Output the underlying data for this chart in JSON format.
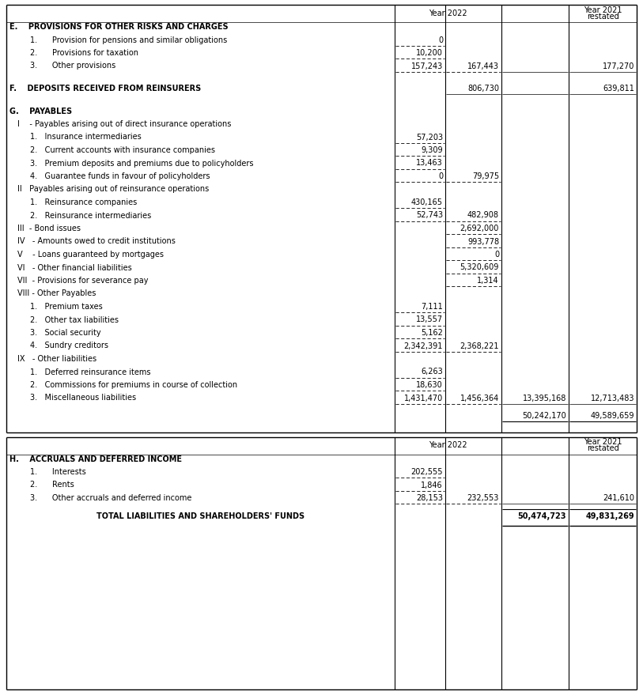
{
  "bg_color": "#ffffff",
  "header_yr2022": "Year 2022",
  "header_yr2021_line1": "Year 2021",
  "header_yr2021_line2": "restated",
  "section_E_title": "E.    PROVISIONS FOR OTHER RISKS AND CHARGES",
  "E_rows": [
    {
      "label": "1.      Provision for pensions and similar obligations",
      "c1": "0",
      "c2": "",
      "c3": "",
      "c4": ""
    },
    {
      "label": "2.      Provisions for taxation",
      "c1": "10,200",
      "c2": "",
      "c3": "",
      "c4": ""
    },
    {
      "label": "3.      Other provisions",
      "c1": "157,243",
      "c2": "167,443",
      "c3": "",
      "c4": "177,270"
    }
  ],
  "section_F_title": "F.    DEPOSITS RECEIVED FROM REINSURERS",
  "F_c2": "806,730",
  "F_c4": "639,811",
  "section_G_title": "G.    PAYABLES",
  "G_rows": [
    {
      "label": "I    - Payables arising out of direct insurance operations",
      "c1": "",
      "c2": "",
      "c3": "",
      "c4": "",
      "level": 1
    },
    {
      "label": "1.   Insurance intermediaries",
      "c1": "57,203",
      "c2": "",
      "c3": "",
      "c4": "",
      "level": 2
    },
    {
      "label": "2.   Current accounts with insurance companies",
      "c1": "9,309",
      "c2": "",
      "c3": "",
      "c4": "",
      "level": 2
    },
    {
      "label": "3.   Premium deposits and premiums due to policyholders",
      "c1": "13,463",
      "c2": "",
      "c3": "",
      "c4": "",
      "level": 2
    },
    {
      "label": "4.   Guarantee funds in favour of policyholders",
      "c1": "0",
      "c2": "79,975",
      "c3": "",
      "c4": "",
      "level": 2
    },
    {
      "label": "II   Payables arising out of reinsurance operations",
      "c1": "",
      "c2": "",
      "c3": "",
      "c4": "",
      "level": 1
    },
    {
      "label": "1.   Reinsurance companies",
      "c1": "430,165",
      "c2": "",
      "c3": "",
      "c4": "",
      "level": 2
    },
    {
      "label": "2.   Reinsurance intermediaries",
      "c1": "52,743",
      "c2": "482,908",
      "c3": "",
      "c4": "",
      "level": 2
    },
    {
      "label": "III  - Bond issues",
      "c1": "",
      "c2": "2,692,000",
      "c3": "",
      "c4": "",
      "level": 1
    },
    {
      "label": "IV   - Amounts owed to credit institutions",
      "c1": "",
      "c2": "993,778",
      "c3": "",
      "c4": "",
      "level": 1
    },
    {
      "label": "V    - Loans guaranteed by mortgages",
      "c1": "",
      "c2": "0",
      "c3": "",
      "c4": "",
      "level": 1
    },
    {
      "label": "VI   - Other financial liabilities",
      "c1": "",
      "c2": "5,320,609",
      "c3": "",
      "c4": "",
      "level": 1
    },
    {
      "label": "VII  - Provisions for severance pay",
      "c1": "",
      "c2": "1,314",
      "c3": "",
      "c4": "",
      "level": 1
    },
    {
      "label": "VIII - Other Payables",
      "c1": "",
      "c2": "",
      "c3": "",
      "c4": "",
      "level": 1
    },
    {
      "label": "1.   Premium taxes",
      "c1": "7,111",
      "c2": "",
      "c3": "",
      "c4": "",
      "level": 2
    },
    {
      "label": "2.   Other tax liabilities",
      "c1": "13,557",
      "c2": "",
      "c3": "",
      "c4": "",
      "level": 2
    },
    {
      "label": "3.   Social security",
      "c1": "5,162",
      "c2": "",
      "c3": "",
      "c4": "",
      "level": 2
    },
    {
      "label": "4.   Sundry creditors",
      "c1": "2,342,391",
      "c2": "2,368,221",
      "c3": "",
      "c4": "",
      "level": 2
    },
    {
      "label": "IX   - Other liabilities",
      "c1": "",
      "c2": "",
      "c3": "",
      "c4": "",
      "level": 1
    },
    {
      "label": "1.   Deferred reinsurance items",
      "c1": "6,263",
      "c2": "",
      "c3": "",
      "c4": "",
      "level": 2
    },
    {
      "label": "2.   Commissions for premiums in course of collection",
      "c1": "18,630",
      "c2": "",
      "c3": "",
      "c4": "",
      "level": 2
    },
    {
      "label": "3.   Miscellaneous liabilities",
      "c1": "1,431,470",
      "c2": "1,456,364",
      "c3": "13,395,168",
      "c4": "12,713,483",
      "level": 2
    }
  ],
  "G_subtotal_c3": "50,242,170",
  "G_subtotal_c4": "49,589,659",
  "section_H_title": "H.    ACCRUALS AND DEFERRED INCOME",
  "H_rows": [
    {
      "label": "1.      Interests",
      "c1": "202,555",
      "c2": "",
      "c4": ""
    },
    {
      "label": "2.      Rents",
      "c1": "1,846",
      "c2": "",
      "c4": ""
    },
    {
      "label": "3.      Other accruals and deferred income",
      "c1": "28,153",
      "c2": "232,553",
      "c4": "241,610"
    }
  ],
  "total_label": "TOTAL LIABILITIES AND SHAREHOLDERS' FUNDS",
  "total_2022": "50,474,723",
  "total_2021": "49,831,269",
  "font_size": 7.0,
  "font_family": "DejaVu Sans"
}
